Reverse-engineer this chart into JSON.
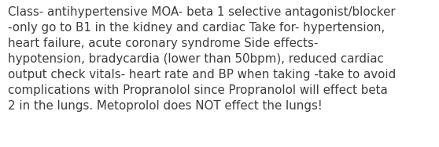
{
  "text": "Class- antihypertensive MOA- beta 1 selective antagonist/blocker\n-only go to B1 in the kidney and cardiac Take for- hypertension,\nheart failure, acute coronary syndrome Side effects-\nhypotension, bradycardia (lower than 50bpm), reduced cardiac\noutput check vitals- heart rate and BP when taking -take to avoid\ncomplications with Propranolol since Propranolol will effect beta\n2 in the lungs. Metoprolol does NOT effect the lungs!",
  "background_color": "#ffffff",
  "text_color": "#3d3d3d",
  "font_size": 10.8,
  "linespacing": 1.42
}
